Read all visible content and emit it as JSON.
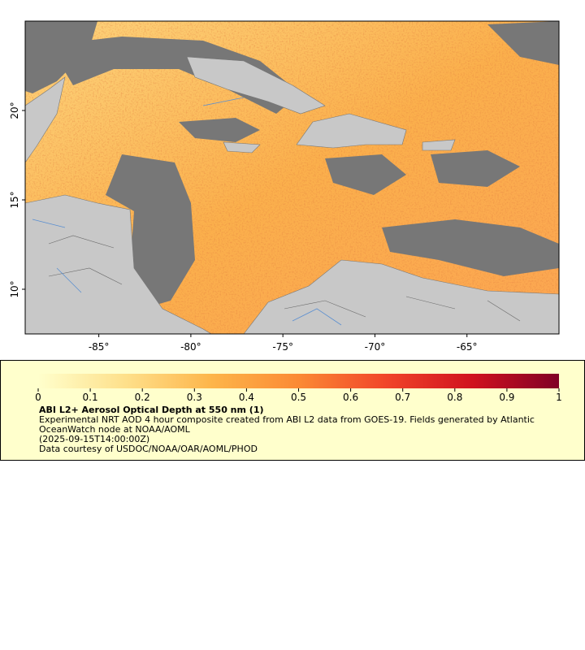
{
  "chart_data": {
    "type": "map",
    "xlim": [
      -89,
      -60
    ],
    "ylim": [
      7.5,
      25
    ],
    "xticks": [
      {
        "value": -85,
        "label": "-85°"
      },
      {
        "value": -80,
        "label": "-80°"
      },
      {
        "value": -75,
        "label": "-75°"
      },
      {
        "value": -70,
        "label": "-70°"
      },
      {
        "value": -65,
        "label": "-65°"
      }
    ],
    "yticks": [
      {
        "value": 10,
        "label": "10°"
      },
      {
        "value": 15,
        "label": "15°"
      },
      {
        "value": 20,
        "label": "20°"
      }
    ],
    "colorbar": {
      "lim": [
        0,
        1
      ],
      "ticks": [
        0,
        0.1,
        0.2,
        0.3,
        0.4,
        0.5,
        0.6,
        0.7,
        0.8,
        0.9,
        1
      ],
      "colors": [
        "#ffffcc",
        "#fee08b",
        "#fdb54a",
        "#fb8a34",
        "#f1452a",
        "#d0121f",
        "#800026"
      ]
    },
    "title": "ABI L2+ Aerosol Optical Depth at 550 nm (1)",
    "description": "Experimental NRT AOD 4 hour composite created from ABI L2 data from GOES-19. Fields generated by Atlantic OceanWatch node at NOAA/AOML",
    "time": "(2025-09-15T14:00:00Z)",
    "credit": "Data courtesy of USDOC/NOAA/OAR/AOML/PHOD"
  }
}
